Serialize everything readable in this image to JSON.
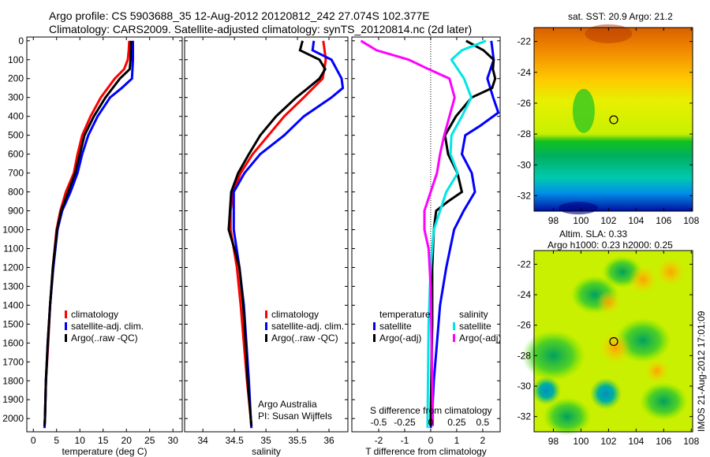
{
  "title_line1": "Argo profile: CS 5903688_35 12-Aug-2012 20120812_242 27.074S 102.377E",
  "title_line2": "Climatology: CARS2009. Satellite-adjusted climatology: synTS_20120814.nc (2d later)",
  "colors": {
    "climatology": "#ff0000",
    "satellite": "#0000ff",
    "argo": "#000000",
    "sal_satellite": "#00e5e5",
    "sal_argo": "#ff00ff"
  },
  "chart_data": [
    {
      "type": "line",
      "id": "temperature",
      "xlabel": "temperature (deg C)",
      "ylabel": "",
      "xlim": [
        -1.4,
        32
      ],
      "ylim": [
        -20,
        2070
      ],
      "xticks": [
        0,
        5,
        10,
        15,
        20,
        25,
        30
      ],
      "xtick_labels": [
        "0",
        "5",
        "10",
        "15",
        "20",
        "25",
        "30"
      ],
      "yticks": [
        0,
        100,
        200,
        300,
        400,
        500,
        600,
        700,
        800,
        900,
        1000,
        1100,
        1200,
        1300,
        1400,
        1500,
        1600,
        1700,
        1800,
        1900,
        2000
      ],
      "ytick_labels": [
        "0",
        "100",
        "200",
        "300",
        "400",
        "500",
        "600",
        "700",
        "800",
        "900",
        "1000",
        "1100",
        "1200",
        "1300",
        "1400",
        "1500",
        "1600",
        "1700",
        "1800",
        "1900",
        "2000"
      ],
      "legend": [
        "climatology",
        "satellite-adj. clim.",
        "Argo(..raw -QC)"
      ],
      "series": [
        {
          "name": "climatology",
          "color": "#ff0000",
          "depth": [
            0,
            50,
            100,
            150,
            200,
            300,
            400,
            500,
            600,
            700,
            800,
            900,
            1000,
            1200,
            1400,
            1600,
            1800,
            2000,
            2050
          ],
          "values": [
            20.6,
            20.5,
            20.3,
            19.5,
            17.5,
            14.5,
            12.3,
            10.5,
            9.5,
            8.7,
            7,
            5.8,
            5,
            4.2,
            3.6,
            3.2,
            2.7,
            2.5,
            2.4
          ]
        },
        {
          "name": "satellite-adj. clim.",
          "color": "#0000ff",
          "depth": [
            0,
            100,
            200,
            250,
            300,
            400,
            500,
            600,
            700,
            800,
            900,
            1000,
            1200,
            1400,
            1600,
            1800,
            2000,
            2050
          ],
          "values": [
            21.4,
            21.4,
            21.2,
            19,
            16.5,
            13.8,
            11.8,
            10.5,
            9.5,
            8,
            6.2,
            5.2,
            4.3,
            3.6,
            3.1,
            2.7,
            2.5,
            2.4
          ]
        },
        {
          "name": "Argo(..raw -QC)",
          "color": "#000000",
          "depth": [
            0,
            100,
            150,
            200,
            300,
            400,
            500,
            600,
            700,
            800,
            900,
            1000,
            1200,
            1400,
            1600,
            1800,
            2000,
            2040
          ],
          "values": [
            21,
            20.9,
            20.7,
            18.6,
            15.5,
            13,
            11,
            10,
            9,
            7.5,
            6,
            5.1,
            4.2,
            3.6,
            3.1,
            2.7,
            2.5,
            2.4
          ]
        }
      ]
    },
    {
      "type": "line",
      "id": "salinity",
      "xlabel": "salinity",
      "xlim": [
        33.71,
        36.3
      ],
      "ylim": [
        -20,
        2070
      ],
      "xticks": [
        34,
        34.5,
        35,
        35.5,
        36
      ],
      "xtick_labels": [
        "34",
        "34.5",
        "35",
        "35.5",
        "36"
      ],
      "yticks": [
        0,
        100,
        200,
        300,
        400,
        500,
        600,
        700,
        800,
        900,
        1000,
        1100,
        1200,
        1300,
        1400,
        1500,
        1600,
        1700,
        1800,
        1900,
        2000
      ],
      "legend": [
        "climatology",
        "satellite-adj. clim.",
        "Argo(..raw -QC)"
      ],
      "annotation": [
        "Argo Australia",
        "PI: Susan Wijffels"
      ],
      "series": [
        {
          "name": "climatology",
          "color": "#ff0000",
          "depth": [
            0,
            100,
            200,
            300,
            400,
            500,
            600,
            700,
            800,
            900,
            1000,
            1200,
            1400,
            1600,
            1800,
            2000,
            2050
          ],
          "values": [
            35.91,
            35.95,
            35.9,
            35.6,
            35.29,
            35.04,
            34.79,
            34.6,
            34.48,
            34.44,
            34.44,
            34.54,
            34.6,
            34.65,
            34.7,
            34.76,
            34.77
          ]
        },
        {
          "name": "satellite-adj. clim.",
          "color": "#0000ff",
          "depth": [
            0,
            50,
            100,
            200,
            250,
            300,
            400,
            500,
            600,
            700,
            800,
            900,
            1000,
            1200,
            1400,
            1600,
            1800,
            2000,
            2050
          ],
          "values": [
            35.76,
            35.74,
            36.04,
            36.2,
            36.22,
            36.04,
            35.6,
            35.29,
            34.91,
            34.66,
            34.49,
            34.49,
            34.49,
            34.58,
            34.65,
            34.69,
            34.73,
            34.76,
            34.77
          ]
        },
        {
          "name": "Argo(..raw -QC)",
          "color": "#000000",
          "depth": [
            0,
            50,
            100,
            150,
            200,
            250,
            300,
            400,
            500,
            600,
            700,
            800,
            900,
            1000,
            1100,
            1200,
            1400,
            1600,
            1800,
            2000,
            2040
          ],
          "values": [
            35.58,
            35.54,
            35.85,
            35.94,
            35.85,
            35.67,
            35.48,
            35.16,
            34.91,
            34.73,
            34.56,
            34.45,
            34.43,
            34.41,
            34.5,
            34.58,
            34.64,
            34.68,
            34.71,
            34.76,
            34.77
          ]
        }
      ]
    },
    {
      "type": "line",
      "id": "differences",
      "xlabel": "T difference from climatology",
      "x2label": "S difference from climatology",
      "xlim": [
        -3.03,
        2.67
      ],
      "ylim": [
        -20,
        2070
      ],
      "xticks": [
        -2,
        -1,
        0,
        1,
        2
      ],
      "xtick_labels": [
        "-2",
        "-1",
        "0",
        "1",
        "2"
      ],
      "x2ticks": [
        -0.5,
        -0.25,
        0,
        0.25,
        0.5
      ],
      "x2tick_labels": [
        "-0.5",
        "-0.25",
        "0",
        "0.25",
        "0.5"
      ],
      "yticks": [
        0,
        100,
        200,
        300,
        400,
        500,
        600,
        700,
        800,
        900,
        1000,
        1100,
        1200,
        1300,
        1400,
        1500,
        1600,
        1700,
        1800,
        1900,
        2000
      ],
      "legend": {
        "temperature_heading": "temperature",
        "salinity_heading": "salinity",
        "items": [
          "satellite",
          "Argo(-adj)",
          "satellite",
          "Argo(-adj)"
        ]
      },
      "series": [
        {
          "name": "T satellite",
          "color": "#0000ff",
          "units": "T",
          "depth": [
            0,
            100,
            200,
            300,
            380,
            450,
            500,
            600,
            700,
            800,
            900,
            1000,
            1200,
            1400,
            1600,
            1800,
            2000,
            2050
          ],
          "values": [
            2.33,
            2.42,
            2.18,
            2.4,
            2.6,
            1.9,
            1.33,
            1.2,
            1.58,
            1.7,
            1.27,
            0.9,
            0.6,
            0.36,
            0.24,
            0.12,
            0.05,
            0
          ]
        },
        {
          "name": "T Argo(-adj)",
          "color": "#000000",
          "units": "T",
          "depth": [
            0,
            50,
            100,
            150,
            200,
            250,
            300,
            400,
            500,
            600,
            700,
            800,
            850,
            900,
            1000,
            1200,
            1500,
            2000,
            2040
          ],
          "values": [
            1.36,
            2.03,
            2.42,
            2.39,
            2.48,
            2.36,
            1.58,
            0.97,
            0.55,
            0.67,
            1.03,
            1.2,
            0.67,
            0.21,
            0.12,
            0.06,
            0.06,
            0,
            0
          ]
        },
        {
          "name": "S satellite",
          "color": "#00e5e5",
          "units": "S",
          "depth": [
            0,
            50,
            100,
            200,
            300,
            400,
            500,
            600,
            700,
            800,
            900,
            1000,
            1200,
            1500,
            2000,
            2050
          ],
          "values": [
            0.53,
            0.3,
            0.2,
            0.32,
            0.39,
            0.3,
            0.2,
            0.19,
            0.26,
            0.15,
            0.09,
            0.03,
            0,
            -0.02,
            -0.03,
            -0.03
          ]
        },
        {
          "name": "S Argo(-adj)",
          "color": "#ff00ff",
          "units": "S",
          "depth": [
            0,
            50,
            100,
            150,
            200,
            300,
            400,
            500,
            600,
            700,
            800,
            900,
            1000,
            1100,
            1300,
            2000,
            2040
          ],
          "values": [
            -0.67,
            -0.52,
            -0.21,
            -0.02,
            0.18,
            0.23,
            0.18,
            0.13,
            0.09,
            0.06,
            0,
            -0.06,
            -0.06,
            -0.02,
            0,
            0.02,
            0.02
          ]
        }
      ]
    }
  ],
  "maps": [
    {
      "title": "sat. SST: 20.9 Argo: 21.2",
      "xticks": [
        "98",
        "100",
        "102",
        "104",
        "106",
        "108"
      ],
      "yticks": [
        "-22",
        "-24",
        "-26",
        "-28",
        "-30",
        "-32"
      ],
      "marker": {
        "lon": 102.377,
        "lat": -27.074
      }
    },
    {
      "title_line1": "Altim. SLA: 0.33",
      "title_line2": "Argo h1000: 0.23 h2000: 0.25",
      "xticks": [
        "98",
        "100",
        "102",
        "104",
        "106",
        "108"
      ],
      "yticks": [
        "-22",
        "-24",
        "-26",
        "-28",
        "-30",
        "-32"
      ],
      "marker": {
        "lon": 102.377,
        "lat": -27.074
      }
    }
  ],
  "footer_stamp": "IMOS 21-Aug-2012 17:01:09"
}
